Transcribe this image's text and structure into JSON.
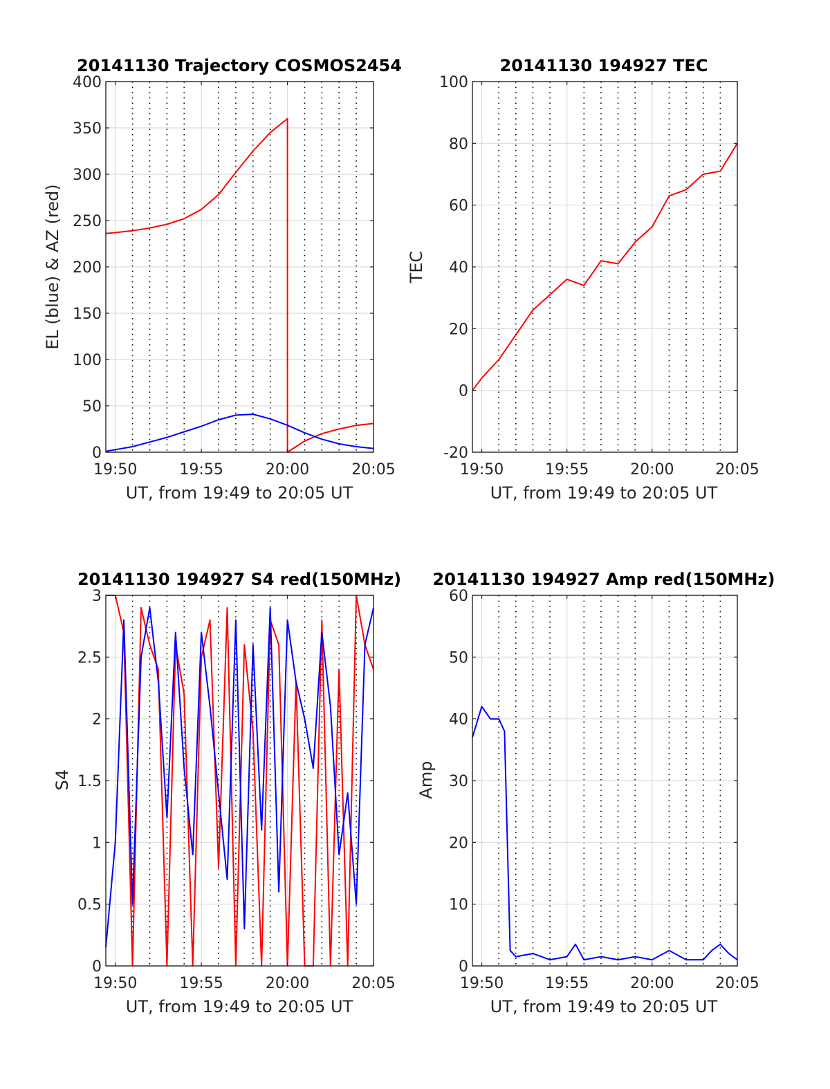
{
  "figure": {
    "background": "#ffffff"
  },
  "x_axis": {
    "tick_labels": [
      "19:50",
      "19:55",
      "20:00",
      "20:05"
    ],
    "xlabel": "UT, from 19:49 to 20:05 UT"
  },
  "chart_data": [
    {
      "type": "line",
      "title": "20141130 Trajectory COSMOS2454",
      "xlabel": "UT, from 19:49 to 20:05 UT",
      "ylabel": "EL (blue) & AZ (red)",
      "xlim": [
        "19:49:27",
        "20:05:00"
      ],
      "ylim": [
        0,
        400
      ],
      "yticks": [
        0,
        50,
        100,
        150,
        200,
        250,
        300,
        350,
        400
      ],
      "grid": true,
      "legend": "none",
      "x": [
        "19:49:27",
        "19:51:00",
        "19:52:00",
        "19:53:00",
        "19:54:00",
        "19:55:00",
        "19:56:00",
        "19:57:00",
        "19:58:00",
        "19:59:00",
        "20:00:00",
        "20:00:00",
        "20:01:00",
        "20:02:00",
        "20:03:00",
        "20:04:00",
        "20:05:00"
      ],
      "series": [
        {
          "color": "#ff0000",
          "values": [
            236,
            239,
            242,
            246,
            252,
            262,
            278,
            302,
            325,
            345,
            360,
            0,
            12,
            20,
            25,
            29,
            31
          ]
        },
        {
          "color": "#0000ff",
          "values": [
            1,
            6,
            11,
            16,
            22,
            28,
            35,
            40,
            41,
            36,
            29,
            29,
            21,
            14,
            9,
            6,
            4
          ]
        }
      ]
    },
    {
      "type": "line",
      "title": "20141130 194927 TEC",
      "xlabel": "UT, from 19:49 to 20:05 UT",
      "ylabel": "TEC",
      "xlim": [
        "19:49:27",
        "20:05:00"
      ],
      "ylim": [
        -20,
        100
      ],
      "yticks": [
        -20,
        0,
        20,
        40,
        60,
        80,
        100
      ],
      "grid": true,
      "legend": "none",
      "x": [
        "19:49:27",
        "19:50:00",
        "19:51:00",
        "19:52:00",
        "19:53:00",
        "19:54:00",
        "19:55:00",
        "19:56:00",
        "19:57:00",
        "19:58:00",
        "19:59:00",
        "20:00:00",
        "20:01:00",
        "20:02:00",
        "20:03:00",
        "20:04:00",
        "20:05:00"
      ],
      "series": [
        {
          "color": "#ff0000",
          "values": [
            0,
            4,
            10,
            18,
            26,
            31,
            36,
            34,
            42,
            41,
            48,
            53,
            63,
            65,
            70,
            71,
            80
          ]
        }
      ]
    },
    {
      "type": "line",
      "title": "20141130 194927 S4 red(150MHz)",
      "xlabel": "UT, from 19:49 to 20:05 UT",
      "ylabel": "S4",
      "xlim": [
        "19:49:27",
        "20:05:00"
      ],
      "ylim": [
        0,
        3
      ],
      "yticks": [
        0,
        0.5,
        1,
        1.5,
        2,
        2.5,
        3
      ],
      "grid": true,
      "legend": "none",
      "x": [
        "19:49:27",
        "19:50:00",
        "19:50:30",
        "19:51:00",
        "19:51:30",
        "19:52:00",
        "19:52:30",
        "19:53:00",
        "19:53:30",
        "19:54:00",
        "19:54:30",
        "19:55:00",
        "19:55:30",
        "19:56:00",
        "19:56:30",
        "19:57:00",
        "19:57:30",
        "19:58:00",
        "19:58:30",
        "19:59:00",
        "19:59:30",
        "20:00:00",
        "20:00:30",
        "20:01:00",
        "20:01:30",
        "20:02:00",
        "20:02:30",
        "20:03:00",
        "20:03:30",
        "20:04:00",
        "20:04:30",
        "20:05:00"
      ],
      "series": [
        {
          "color": "#ff0000",
          "values": [
            3,
            3,
            2.7,
            0,
            2.9,
            2.6,
            2.4,
            0,
            2.6,
            2.2,
            0,
            2.5,
            2.8,
            0.8,
            2.9,
            0,
            2.6,
            1.9,
            0,
            2.8,
            2.6,
            0,
            2.3,
            0,
            0,
            2.8,
            0,
            2.4,
            0,
            3,
            2.6,
            2.4
          ]
        },
        {
          "color": "#0000ff",
          "values": [
            0.15,
            1.0,
            2.8,
            0.5,
            2.5,
            2.9,
            2.3,
            1.2,
            2.7,
            1.6,
            0.9,
            2.7,
            2.1,
            1.4,
            0.7,
            2.8,
            0.3,
            2.6,
            1.1,
            2.9,
            0.6,
            2.8,
            2.3,
            2.0,
            1.6,
            2.7,
            2.1,
            0.9,
            1.4,
            0.5,
            2.6,
            2.9
          ]
        }
      ]
    },
    {
      "type": "line",
      "title": "20141130 194927 Amp red(150MHz)",
      "xlabel": "UT, from 19:49 to 20:05 UT",
      "ylabel": "Amp",
      "xlim": [
        "19:49:27",
        "20:05:00"
      ],
      "ylim": [
        0,
        60
      ],
      "yticks": [
        0,
        10,
        20,
        30,
        40,
        50,
        60
      ],
      "grid": true,
      "legend": "none",
      "x": [
        "19:49:27",
        "19:50:00",
        "19:50:30",
        "19:51:00",
        "19:51:20",
        "19:51:40",
        "19:52:00",
        "19:53:00",
        "19:54:00",
        "19:55:00",
        "19:55:30",
        "19:56:00",
        "19:57:00",
        "19:58:00",
        "19:59:00",
        "20:00:00",
        "20:01:00",
        "20:02:00",
        "20:03:00",
        "20:03:30",
        "20:04:00",
        "20:04:30",
        "20:05:00"
      ],
      "series": [
        {
          "color": "#0000ff",
          "values": [
            37,
            42,
            40,
            40,
            38,
            2.5,
            1.5,
            2,
            1,
            1.5,
            3.5,
            1,
            1.5,
            1,
            1.5,
            1,
            2.5,
            1,
            1,
            2.5,
            3.5,
            2,
            1
          ]
        }
      ]
    }
  ]
}
